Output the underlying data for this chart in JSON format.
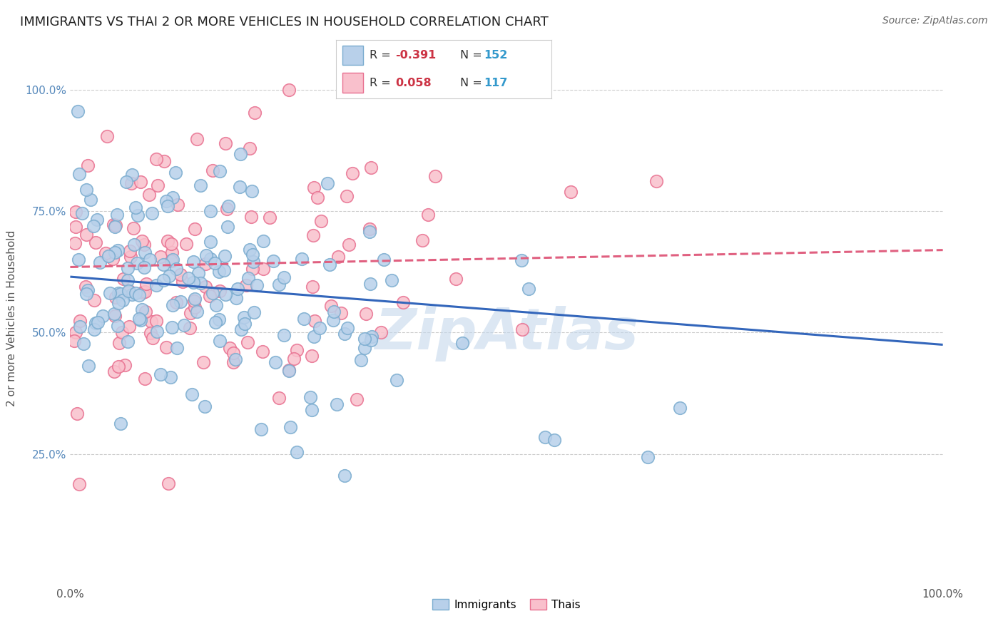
{
  "title": "IMMIGRANTS VS THAI 2 OR MORE VEHICLES IN HOUSEHOLD CORRELATION CHART",
  "source": "Source: ZipAtlas.com",
  "ylabel": "2 or more Vehicles in Household",
  "xlim": [
    0.0,
    1.0
  ],
  "ylim": [
    -0.02,
    1.08
  ],
  "ytick_positions": [
    0.25,
    0.5,
    0.75,
    1.0
  ],
  "ytick_labels": [
    "25.0%",
    "50.0%",
    "75.0%",
    "100.0%"
  ],
  "xtick_positions": [
    0.0,
    1.0
  ],
  "xtick_labels": [
    "0.0%",
    "100.0%"
  ],
  "immigrants_face_color": "#b8d0ea",
  "immigrants_edge_color": "#7aaccf",
  "thais_face_color": "#f9c0cc",
  "thais_edge_color": "#e87090",
  "immigrants_line_color": "#3366bb",
  "thais_line_color": "#e06080",
  "immigrants_R": -0.391,
  "immigrants_N": 152,
  "thais_R": 0.058,
  "thais_N": 117,
  "watermark": "ZipAtlas",
  "watermark_color": "#c5d8ec",
  "title_fontsize": 13,
  "axis_fontsize": 11,
  "source_fontsize": 10,
  "background_color": "#ffffff",
  "grid_color": "#cccccc",
  "ytick_color": "#5588bb",
  "xtick_color": "#555555",
  "ylabel_color": "#555555",
  "legend_R_label_color": "#333333",
  "legend_R_value_color": "#cc3344",
  "legend_N_label_color": "#333333",
  "legend_N_value_color": "#3399cc",
  "imm_line_start_y": 0.615,
  "imm_line_end_y": 0.475,
  "thai_line_start_y": 0.635,
  "thai_line_end_y": 0.67,
  "random_seed_immigrants": 42,
  "random_seed_thais": 7
}
